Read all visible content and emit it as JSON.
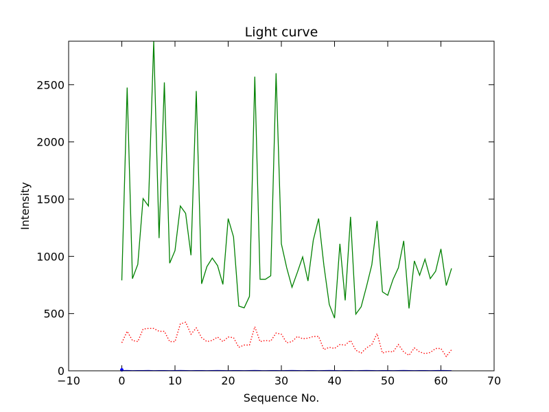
{
  "chart_data": {
    "type": "line",
    "title": "Light curve",
    "xlabel": "Sequence No.",
    "ylabel": "Intensity",
    "xlim": [
      -10,
      70
    ],
    "ylim": [
      0,
      2880
    ],
    "xticks": [
      -10,
      0,
      10,
      20,
      30,
      40,
      50,
      60,
      70
    ],
    "yticks": [
      0,
      500,
      1000,
      1500,
      2000,
      2500
    ],
    "grid": false,
    "series": [
      {
        "color": "#008000",
        "style": "solid",
        "x": [
          0,
          1,
          2,
          3,
          4,
          5,
          6,
          7,
          8,
          9,
          10,
          11,
          12,
          13,
          14,
          15,
          16,
          17,
          18,
          19,
          20,
          21,
          22,
          23,
          24,
          25,
          26,
          27,
          28,
          29,
          30,
          31,
          32,
          33,
          34,
          35,
          36,
          37,
          38,
          39,
          40,
          41,
          42,
          43,
          44,
          45,
          46,
          47,
          48,
          49,
          50,
          51,
          52,
          53,
          54,
          55,
          56,
          57,
          58,
          59,
          60,
          61,
          62
        ],
        "y": [
          790,
          2475,
          805,
          930,
          1505,
          1440,
          2880,
          1160,
          2520,
          940,
          1050,
          1440,
          1375,
          1010,
          2445,
          760,
          910,
          985,
          920,
          755,
          1330,
          1170,
          565,
          550,
          650,
          2570,
          800,
          800,
          830,
          2600,
          1110,
          900,
          730,
          860,
          995,
          785,
          1140,
          1330,
          920,
          580,
          460,
          1110,
          615,
          1345,
          495,
          560,
          735,
          925,
          1310,
          690,
          660,
          800,
          900,
          1135,
          545,
          960,
          835,
          975,
          805,
          870,
          1065,
          745,
          895
        ]
      },
      {
        "color": "#ff0000",
        "style": "dotted",
        "x": [
          0,
          1,
          2,
          3,
          4,
          5,
          6,
          7,
          8,
          9,
          10,
          11,
          12,
          13,
          14,
          15,
          16,
          17,
          18,
          19,
          20,
          21,
          22,
          23,
          24,
          25,
          26,
          27,
          28,
          29,
          30,
          31,
          32,
          33,
          34,
          35,
          36,
          37,
          38,
          39,
          40,
          41,
          42,
          43,
          44,
          45,
          46,
          47,
          48,
          49,
          50,
          51,
          52,
          53,
          54,
          55,
          56,
          57,
          58,
          59,
          60,
          61,
          62
        ],
        "y": [
          245,
          345,
          265,
          255,
          365,
          370,
          370,
          345,
          345,
          255,
          255,
          410,
          425,
          320,
          375,
          290,
          255,
          265,
          295,
          255,
          295,
          290,
          205,
          225,
          225,
          385,
          255,
          265,
          260,
          330,
          320,
          245,
          255,
          300,
          280,
          285,
          300,
          300,
          185,
          205,
          195,
          230,
          225,
          265,
          180,
          155,
          200,
          230,
          325,
          155,
          170,
          165,
          230,
          165,
          135,
          200,
          165,
          150,
          160,
          195,
          195,
          125,
          185
        ]
      },
      {
        "color": "#0000ff",
        "style": "solid",
        "x": [
          0,
          1,
          2,
          3,
          4,
          5,
          6,
          7,
          8,
          9,
          10,
          11,
          12,
          13,
          14,
          15,
          16,
          17,
          18,
          19,
          20,
          21,
          22,
          23,
          24,
          25,
          26,
          27,
          28,
          29,
          30,
          31,
          32,
          33,
          34,
          35,
          36,
          37,
          38,
          39,
          40,
          41,
          42,
          43,
          44,
          45,
          46,
          47,
          48,
          49,
          50,
          51,
          52,
          53,
          54,
          55,
          56,
          57,
          58,
          59,
          60,
          61,
          62
        ],
        "y": [
          2,
          3,
          1,
          2,
          2,
          3,
          1,
          2,
          2,
          1,
          2,
          3,
          2,
          1,
          2,
          2,
          1,
          2,
          3,
          2,
          1,
          2,
          2,
          1,
          2,
          3,
          2,
          1,
          2,
          2,
          1,
          2,
          3,
          2,
          1,
          2,
          2,
          1,
          2,
          3,
          2,
          1,
          2,
          2,
          1,
          2,
          3,
          2,
          1,
          2,
          2,
          1,
          2,
          3,
          2,
          1,
          2,
          2,
          1,
          2,
          3,
          2,
          1
        ]
      }
    ]
  },
  "colors": {
    "frame": "#000000",
    "background": "#ffffff"
  }
}
